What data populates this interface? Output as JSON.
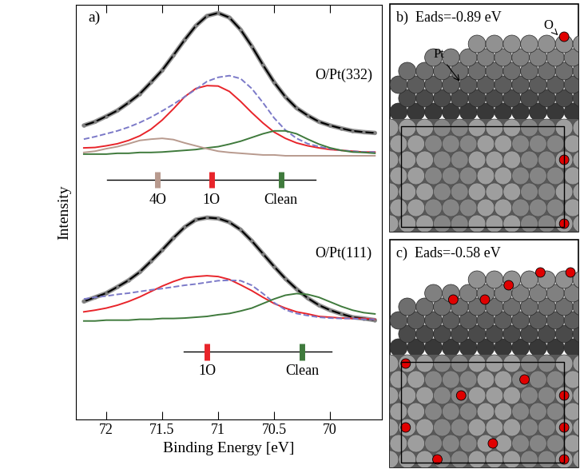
{
  "chart_data": {
    "type": "line",
    "panel_label": "a)",
    "xlabel": "Binding Energy [eV]",
    "ylabel": "Intensity",
    "xlim": [
      72.27,
      69.54
    ],
    "xticks": [
      72,
      71.5,
      71,
      70.5,
      70
    ],
    "ylim": [
      0,
      10
    ],
    "yticks": [],
    "tick_labels": "x",
    "x": [
      72.2,
      72.1,
      72.0,
      71.9,
      71.8,
      71.7,
      71.6,
      71.5,
      71.4,
      71.3,
      71.2,
      71.1,
      71.0,
      70.9,
      70.8,
      70.7,
      70.6,
      70.5,
      70.4,
      70.3,
      70.2,
      70.1,
      70.0,
      69.9,
      69.8,
      69.7,
      69.6
    ],
    "spectra": [
      {
        "name": "O/Pt(332)",
        "name_x": 69.88,
        "name_y": 8.3,
        "series": [
          {
            "color": "#000000",
            "line_style": "solid",
            "marker": "o",
            "values": [
              7.09,
              7.18,
              7.31,
              7.45,
              7.64,
              7.85,
              8.13,
              8.42,
              8.78,
              9.15,
              9.49,
              9.73,
              9.8,
              9.69,
              9.4,
              9.0,
              8.55,
              8.13,
              7.78,
              7.51,
              7.33,
              7.18,
              7.09,
              7.02,
              6.96,
              6.93,
              6.91
            ]
          },
          {
            "color": "#e8242a",
            "line_style": "solid",
            "values": [
              6.55,
              6.56,
              6.6,
              6.65,
              6.73,
              6.84,
              7.0,
              7.22,
              7.49,
              7.78,
              7.98,
              8.05,
              8.04,
              7.91,
              7.67,
              7.4,
              7.15,
              6.93,
              6.78,
              6.67,
              6.6,
              6.55,
              6.51,
              6.49,
              6.47,
              6.45,
              6.45
            ]
          },
          {
            "color": "#7b79c8",
            "line_style": "dashed",
            "values": [
              6.76,
              6.82,
              6.89,
              6.96,
              7.05,
              7.16,
              7.29,
              7.44,
              7.6,
              7.78,
              7.96,
              8.15,
              8.25,
              8.29,
              8.22,
              7.98,
              7.64,
              7.27,
              6.98,
              6.78,
              6.65,
              6.58,
              6.53,
              6.49,
              6.47,
              6.45,
              6.45
            ]
          },
          {
            "color": "#3f7a3c",
            "line_style": "solid",
            "values": [
              6.4,
              6.4,
              6.4,
              6.42,
              6.42,
              6.44,
              6.44,
              6.45,
              6.47,
              6.49,
              6.51,
              6.55,
              6.58,
              6.64,
              6.71,
              6.8,
              6.89,
              6.96,
              6.96,
              6.89,
              6.76,
              6.64,
              6.55,
              6.49,
              6.45,
              6.44,
              6.42
            ]
          },
          {
            "color": "#b89a8e",
            "line_style": "solid",
            "values": [
              6.44,
              6.47,
              6.53,
              6.58,
              6.65,
              6.73,
              6.76,
              6.78,
              6.75,
              6.67,
              6.6,
              6.53,
              6.47,
              6.44,
              6.42,
              6.4,
              6.38,
              6.38,
              6.36,
              6.36,
              6.36,
              6.36,
              6.36,
              6.36,
              6.36,
              6.36,
              6.36
            ]
          }
        ],
        "markers": {
          "y": 5.78,
          "xmin": 71.99,
          "xmax": 70.13,
          "label_y": 5.45,
          "items": [
            {
              "label": "4O",
              "x": 71.54,
              "color": "#b89a8e"
            },
            {
              "label": "1O",
              "x": 71.06,
              "color": "#e8242a"
            },
            {
              "label": "Clean",
              "x": 70.44,
              "color": "#3f7a3c"
            }
          ]
        }
      },
      {
        "name": "O/Pt(111)",
        "name_x": 69.88,
        "name_y": 4.0,
        "series": [
          {
            "color": "#000000",
            "line_style": "solid",
            "marker": "o",
            "values": [
              2.85,
              2.95,
              3.05,
              3.2,
              3.36,
              3.56,
              3.82,
              4.09,
              4.38,
              4.64,
              4.82,
              4.87,
              4.85,
              4.76,
              4.58,
              4.31,
              4.0,
              3.69,
              3.4,
              3.15,
              2.93,
              2.76,
              2.64,
              2.55,
              2.47,
              2.44,
              2.4
            ]
          },
          {
            "color": "#e8242a",
            "line_style": "solid",
            "values": [
              2.6,
              2.64,
              2.69,
              2.76,
              2.85,
              2.96,
              3.09,
              3.22,
              3.33,
              3.42,
              3.45,
              3.47,
              3.45,
              3.38,
              3.25,
              3.11,
              2.95,
              2.8,
              2.69,
              2.6,
              2.55,
              2.49,
              2.47,
              2.45,
              2.44,
              2.44,
              2.42
            ]
          },
          {
            "color": "#7b79c8",
            "line_style": "dashed",
            "values": [
              2.91,
              2.95,
              2.98,
              3.02,
              3.05,
              3.09,
              3.13,
              3.16,
              3.2,
              3.24,
              3.27,
              3.31,
              3.35,
              3.36,
              3.35,
              3.24,
              3.04,
              2.82,
              2.65,
              2.56,
              2.51,
              2.47,
              2.45,
              2.44,
              2.44,
              2.42,
              2.42
            ]
          },
          {
            "color": "#3f7a3c",
            "line_style": "solid",
            "values": [
              2.38,
              2.38,
              2.4,
              2.4,
              2.4,
              2.42,
              2.42,
              2.44,
              2.44,
              2.45,
              2.47,
              2.49,
              2.53,
              2.56,
              2.62,
              2.69,
              2.8,
              2.91,
              3.0,
              3.04,
              3.02,
              2.95,
              2.84,
              2.73,
              2.64,
              2.58,
              2.55
            ]
          }
        ],
        "markers": {
          "y": 1.64,
          "xmin": 71.31,
          "xmax": 69.99,
          "label_y": 1.33,
          "items": [
            {
              "label": "1O",
              "x": 71.1,
              "color": "#e8242a"
            },
            {
              "label": "Clean",
              "x": 70.25,
              "color": "#3f7a3c"
            }
          ]
        }
      }
    ]
  },
  "panels": [
    {
      "label": "b)",
      "text": "Eads=-0.89 eV",
      "atom_labels": [
        "Pt",
        "O"
      ]
    },
    {
      "label": "c)",
      "text": "Eads=-0.58 eV"
    }
  ]
}
